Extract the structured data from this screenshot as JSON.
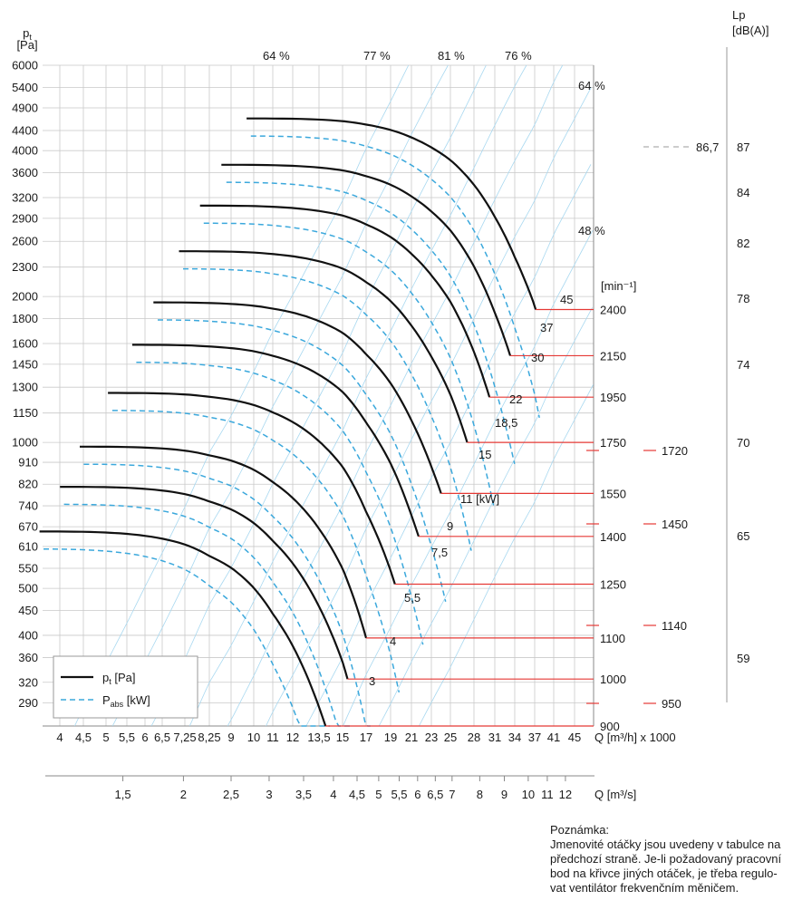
{
  "chart_data": {
    "type": "line",
    "y_axis": {
      "label_main": "p",
      "label_sub": "t",
      "unit": "[Pa]",
      "scale": "log",
      "ticks": [
        290,
        320,
        360,
        400,
        450,
        500,
        550,
        610,
        670,
        740,
        820,
        910,
        1000,
        1150,
        1300,
        1450,
        1600,
        1800,
        2000,
        2300,
        2600,
        2900,
        3200,
        3600,
        4000,
        4400,
        4900,
        5400,
        6000
      ],
      "ylim": [
        260,
        6000
      ]
    },
    "x_axis_flow_hour": {
      "label": "Q [m³/h] x 1000",
      "scale": "log",
      "ticks": [
        4,
        4.5,
        5,
        5.5,
        6,
        6.5,
        7.25,
        8.25,
        9,
        10,
        11,
        12,
        13.5,
        15,
        17,
        19,
        21,
        23,
        25,
        28,
        31,
        34,
        37,
        41,
        45
      ],
      "tick_labels": [
        "4",
        "4,5",
        "5",
        "5,5",
        "6",
        "6,5",
        "7,25",
        "8,25",
        "9",
        "10",
        "11",
        "12",
        "13,5",
        "15",
        "17",
        "19",
        "21",
        "23",
        "25",
        "28",
        "31",
        "34",
        "37",
        "41",
        "45"
      ]
    },
    "x_axis_flow_second": {
      "label": "Q [m³/s]",
      "ticks": [
        1.5,
        2,
        2.5,
        3,
        3.5,
        4,
        4.5,
        5,
        5.5,
        6,
        6.5,
        7,
        8,
        9,
        10,
        11,
        12
      ],
      "tick_labels": [
        "1,5",
        "2",
        "2,5",
        "3",
        "3,5",
        "4",
        "4,5",
        "5",
        "5,5",
        "6",
        "6,5",
        "7",
        "8",
        "9",
        "10",
        "11",
        "12"
      ]
    },
    "speed_axis": {
      "unit": "[min⁻¹]",
      "values": [
        900,
        1000,
        1100,
        1250,
        1400,
        1550,
        1750,
        1950,
        2150,
        2400
      ],
      "labels": [
        "900",
        "1000",
        "1100",
        "1250",
        "1400",
        "1550",
        "1750",
        "1950",
        "2150",
        "2400"
      ]
    },
    "nominal_speeds": [
      "950",
      "1140",
      "1450",
      "1720"
    ],
    "series": [
      {
        "name": "p_t [Pa]",
        "style": "solid",
        "color": "#111111"
      },
      {
        "name": "P_abs [kW]",
        "style": "dashed",
        "color": "#3ba8dc"
      }
    ],
    "legend": {
      "placement": "bottom-left",
      "items": [
        {
          "main": "p",
          "sub": "t",
          "rest": " [Pa]"
        },
        {
          "main": "P",
          "sub": "abs",
          "rest": " [kW]"
        }
      ]
    },
    "pressure_curves": [
      {
        "speed": 900,
        "q_max": 13.9,
        "p_end": 260,
        "p_shutoff": 655
      },
      {
        "speed": 1000,
        "q_max": 15.4,
        "p_end": 325,
        "p_shutoff": 810
      },
      {
        "speed": 1100,
        "q_max": 17.0,
        "p_end": 395,
        "p_shutoff": 980
      },
      {
        "speed": 1250,
        "q_max": 19.4,
        "p_end": 510,
        "p_shutoff": 1265
      },
      {
        "speed": 1400,
        "q_max": 21.7,
        "p_end": 640,
        "p_shutoff": 1590
      },
      {
        "speed": 1550,
        "q_max": 24.0,
        "p_end": 785,
        "p_shutoff": 1945
      },
      {
        "speed": 1750,
        "q_max": 27.1,
        "p_end": 1000,
        "p_shutoff": 2480
      },
      {
        "speed": 1950,
        "q_max": 30.2,
        "p_end": 1240,
        "p_shutoff": 3080
      },
      {
        "speed": 2150,
        "q_max": 33.3,
        "p_end": 1510,
        "p_shutoff": 3740
      },
      {
        "speed": 2400,
        "q_max": 37.2,
        "p_end": 1880,
        "p_shutoff": 4660
      }
    ],
    "power_labels": [
      "3",
      "4",
      "5,5",
      "7,5",
      "9",
      "11 [kW]",
      "15",
      "18,5",
      "22",
      "30",
      "37",
      "45"
    ],
    "efficiency_labels": [
      "64 %",
      "77 %",
      "81 %",
      "76 %",
      "64 %",
      "48 %"
    ],
    "noise_axis": {
      "label": "Lp",
      "unit": "[dB(A)]",
      "ticks": [
        59,
        65,
        70,
        74,
        78,
        82,
        84,
        87
      ],
      "max_label": "86,7"
    }
  },
  "note": {
    "title": "Poznámka:",
    "lines": [
      "Jmenovité otáčky jsou uvedeny v tabulce na",
      "předchozí straně. Je-li požadovaný pracovní",
      "bod na křivce jiných otáček, je třeba regulo-",
      "vat ventilátor frekvenčním měničem."
    ]
  }
}
